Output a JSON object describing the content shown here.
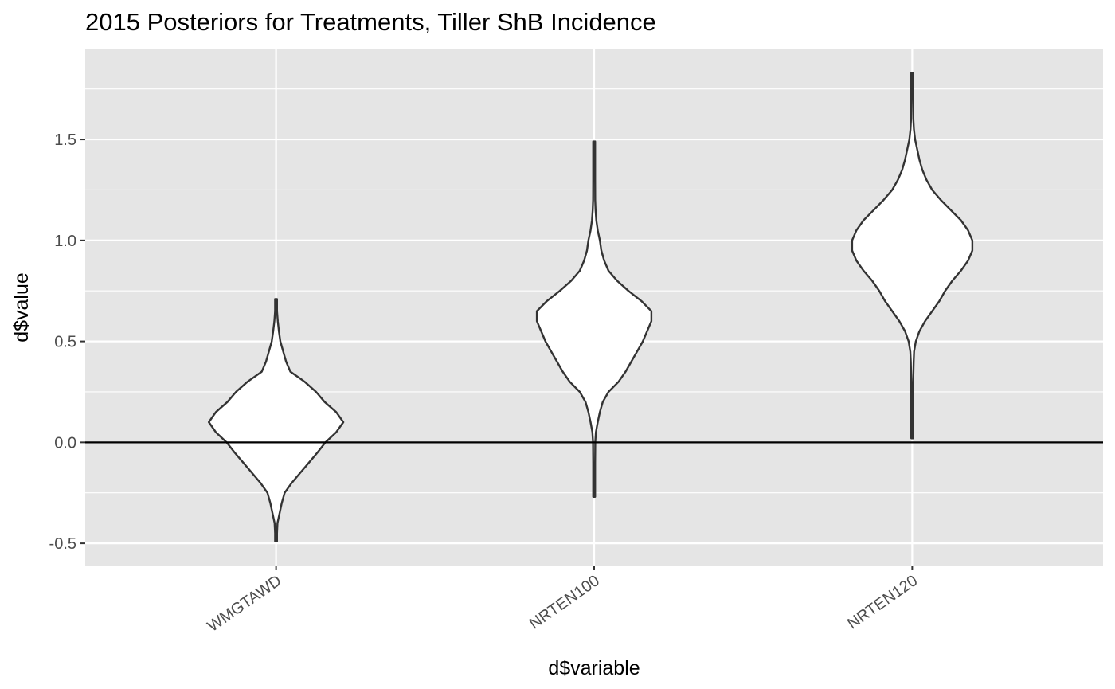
{
  "chart_data": {
    "type": "violin",
    "title": "2015 Posteriors for Treatments, Tiller ShB Incidence",
    "xlabel": "d$variable",
    "ylabel": "d$value",
    "categories": [
      "WMGTAWD",
      "NRTEN100",
      "NRTEN120"
    ],
    "ylim": [
      -0.61,
      1.95
    ],
    "yticks": [
      -0.5,
      0.0,
      0.5,
      1.0,
      1.5
    ],
    "ytick_labels": [
      "-0.5",
      "0.0",
      "0.5",
      "1.0",
      "1.5"
    ],
    "reference_line": {
      "y": 0.0,
      "color": "#000000"
    },
    "grid": true,
    "panel_background": "#e5e5e5",
    "grid_color": "#ffffff",
    "violin_fill": "#ffffff",
    "violin_outline": "#333333",
    "series": [
      {
        "category": "WMGTAWD",
        "min": -0.49,
        "max": 0.71,
        "profile": [
          [
            -0.49,
            0.0
          ],
          [
            -0.45,
            0.006
          ],
          [
            -0.4,
            0.01
          ],
          [
            -0.35,
            0.025
          ],
          [
            -0.3,
            0.04
          ],
          [
            -0.25,
            0.06
          ],
          [
            -0.2,
            0.11
          ],
          [
            -0.15,
            0.17
          ],
          [
            -0.1,
            0.23
          ],
          [
            -0.05,
            0.29
          ],
          [
            0.0,
            0.345
          ],
          [
            0.05,
            0.42
          ],
          [
            0.1,
            0.47
          ],
          [
            0.15,
            0.42
          ],
          [
            0.2,
            0.34
          ],
          [
            0.25,
            0.28
          ],
          [
            0.3,
            0.2
          ],
          [
            0.35,
            0.1
          ],
          [
            0.4,
            0.07
          ],
          [
            0.45,
            0.05
          ],
          [
            0.5,
            0.03
          ],
          [
            0.55,
            0.02
          ],
          [
            0.6,
            0.012
          ],
          [
            0.65,
            0.006
          ],
          [
            0.71,
            0.0
          ]
        ]
      },
      {
        "category": "NRTEN100",
        "min": -0.27,
        "max": 1.49,
        "profile": [
          [
            -0.27,
            0.0
          ],
          [
            -0.2,
            0.003
          ],
          [
            -0.1,
            0.005
          ],
          [
            0.0,
            0.008
          ],
          [
            0.05,
            0.012
          ],
          [
            0.1,
            0.025
          ],
          [
            0.15,
            0.04
          ],
          [
            0.2,
            0.06
          ],
          [
            0.25,
            0.1
          ],
          [
            0.3,
            0.17
          ],
          [
            0.35,
            0.22
          ],
          [
            0.4,
            0.26
          ],
          [
            0.45,
            0.3
          ],
          [
            0.5,
            0.34
          ],
          [
            0.55,
            0.37
          ],
          [
            0.6,
            0.4
          ],
          [
            0.65,
            0.4
          ],
          [
            0.7,
            0.33
          ],
          [
            0.75,
            0.24
          ],
          [
            0.8,
            0.16
          ],
          [
            0.85,
            0.1
          ],
          [
            0.9,
            0.07
          ],
          [
            0.95,
            0.05
          ],
          [
            1.0,
            0.04
          ],
          [
            1.05,
            0.025
          ],
          [
            1.1,
            0.015
          ],
          [
            1.15,
            0.01
          ],
          [
            1.2,
            0.007
          ],
          [
            1.3,
            0.004
          ],
          [
            1.4,
            0.002
          ],
          [
            1.49,
            0.0
          ]
        ]
      },
      {
        "category": "NRTEN120",
        "min": 0.02,
        "max": 1.83,
        "profile": [
          [
            0.02,
            0.0
          ],
          [
            0.1,
            0.003
          ],
          [
            0.2,
            0.004
          ],
          [
            0.3,
            0.006
          ],
          [
            0.4,
            0.01
          ],
          [
            0.45,
            0.013
          ],
          [
            0.5,
            0.025
          ],
          [
            0.55,
            0.05
          ],
          [
            0.6,
            0.09
          ],
          [
            0.65,
            0.14
          ],
          [
            0.7,
            0.19
          ],
          [
            0.75,
            0.23
          ],
          [
            0.8,
            0.28
          ],
          [
            0.85,
            0.34
          ],
          [
            0.9,
            0.39
          ],
          [
            0.95,
            0.42
          ],
          [
            1.0,
            0.42
          ],
          [
            1.05,
            0.39
          ],
          [
            1.1,
            0.34
          ],
          [
            1.15,
            0.27
          ],
          [
            1.2,
            0.2
          ],
          [
            1.25,
            0.14
          ],
          [
            1.3,
            0.1
          ],
          [
            1.35,
            0.07
          ],
          [
            1.4,
            0.05
          ],
          [
            1.45,
            0.035
          ],
          [
            1.5,
            0.02
          ],
          [
            1.55,
            0.012
          ],
          [
            1.6,
            0.008
          ],
          [
            1.7,
            0.004
          ],
          [
            1.83,
            0.0
          ]
        ]
      }
    ]
  }
}
